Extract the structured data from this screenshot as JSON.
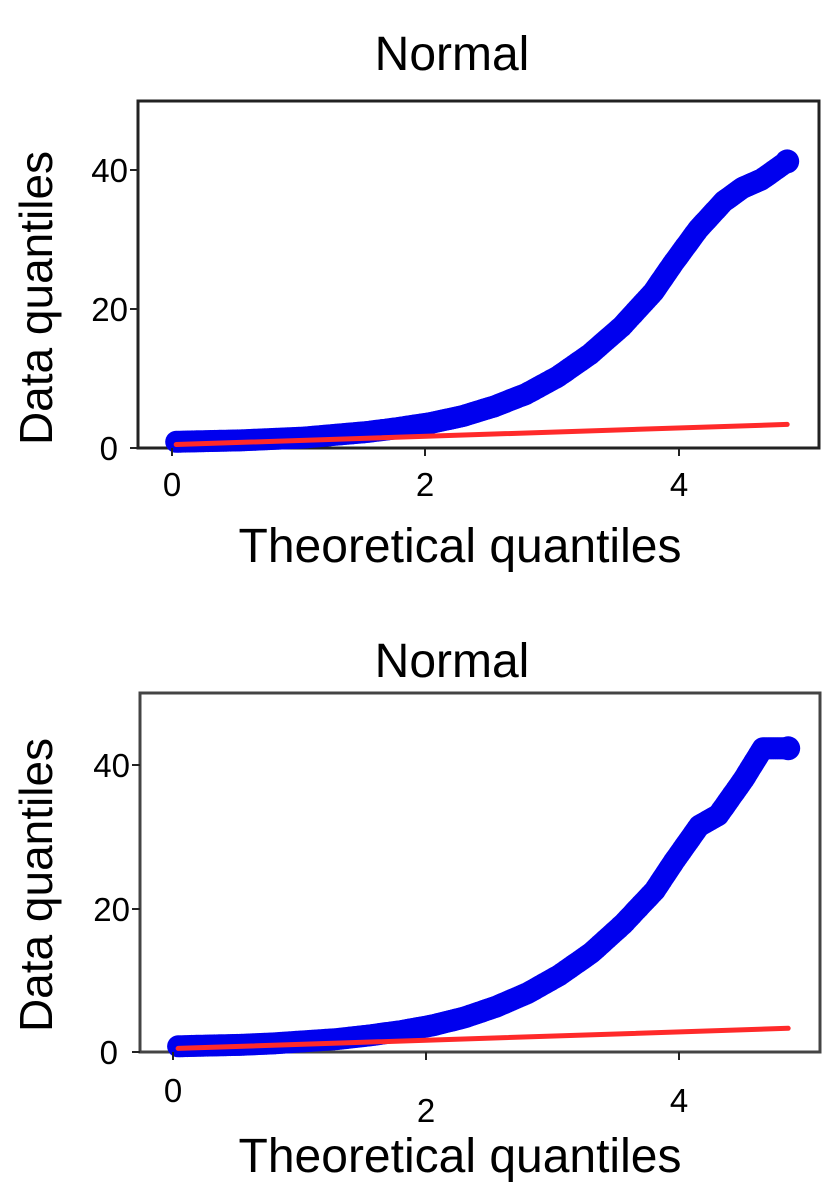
{
  "chart_data": [
    {
      "type": "scatter",
      "title": "Normal",
      "xlabel": "Theoretical quantiles",
      "ylabel": "Data quantiles",
      "xlim": [
        -0.3,
        5.05
      ],
      "ylim": [
        0,
        50
      ],
      "xticks": [
        "0",
        "2",
        "4"
      ],
      "yticks": [
        "0",
        "20",
        "40"
      ],
      "marker_color": "#0000ee",
      "line_color": "#ff2a2a",
      "series": [
        {
          "values_kind": "quantile points",
          "x": [
            0,
            0.25,
            0.5,
            0.75,
            1.0,
            1.25,
            1.5,
            1.75,
            2.0,
            2.25,
            2.5,
            2.75,
            3.0,
            3.25,
            3.5,
            3.75,
            3.9,
            4.1,
            4.3,
            4.45,
            4.6,
            4.8
          ],
          "y": [
            0.9,
            1.0,
            1.1,
            1.3,
            1.5,
            1.9,
            2.3,
            2.9,
            3.6,
            4.6,
            6.0,
            7.8,
            10.3,
            13.5,
            17.5,
            22.5,
            26.5,
            31.5,
            35.5,
            37.5,
            38.7,
            41.3
          ]
        }
      ],
      "reference_line": {
        "x": [
          0,
          4.8
        ],
        "y": [
          0.5,
          3.4
        ]
      }
    },
    {
      "type": "scatter",
      "title": "Normal",
      "xlabel": "Theoretical quantiles",
      "ylabel": "Data quantiles",
      "xlim": [
        -0.3,
        5.05
      ],
      "ylim": [
        0,
        50
      ],
      "xticks": [
        "0",
        "2",
        "4"
      ],
      "yticks": [
        "0",
        "20",
        "40"
      ],
      "marker_color": "#0000ee",
      "line_color": "#ff2a2a",
      "series": [
        {
          "values_kind": "quantile points",
          "x": [
            0,
            0.25,
            0.5,
            0.75,
            1.0,
            1.25,
            1.5,
            1.75,
            2.0,
            2.25,
            2.5,
            2.75,
            3.0,
            3.25,
            3.5,
            3.75,
            3.9,
            4.1,
            4.25,
            4.45,
            4.6,
            4.8
          ],
          "y": [
            0.8,
            0.9,
            1.0,
            1.2,
            1.5,
            1.8,
            2.3,
            2.9,
            3.7,
            4.8,
            6.3,
            8.2,
            10.7,
            13.8,
            17.8,
            22.5,
            26.5,
            31.5,
            33.0,
            38.0,
            42.3,
            42.3
          ]
        }
      ],
      "reference_line": {
        "x": [
          0,
          4.8
        ],
        "y": [
          0.5,
          3.3
        ]
      }
    }
  ]
}
